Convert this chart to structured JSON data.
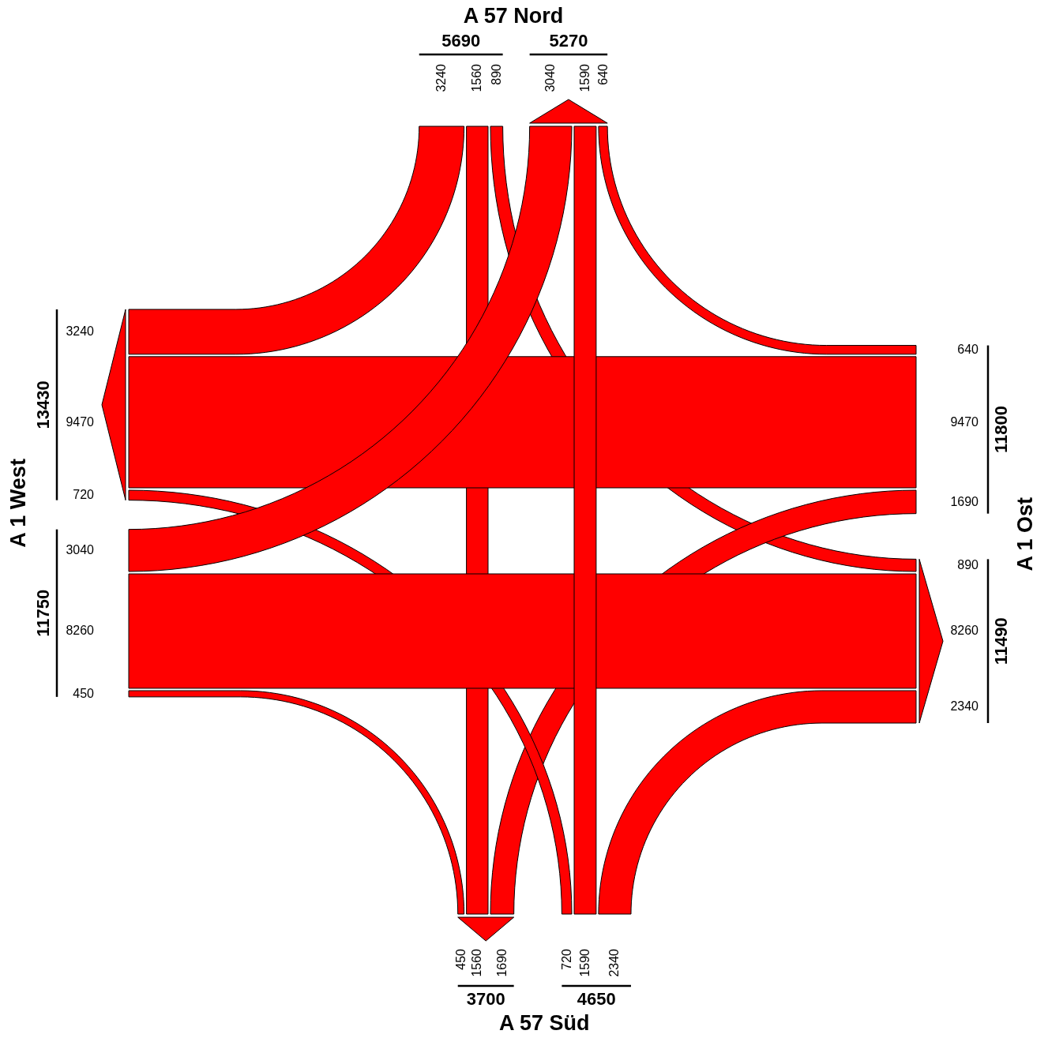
{
  "chart_data": {
    "type": "other",
    "categories": [
      "A 57 Nord",
      "A 1 Ost",
      "A 57 Süd",
      "A 1 West"
    ],
    "series": [
      {
        "color": "#ff0000",
        "values": [
          null,
          890,
          1560,
          3240
        ]
      },
      {
        "color": "#ff0000",
        "values": [
          640,
          null,
          1690,
          9470
        ]
      },
      {
        "color": "#ff0000",
        "values": [
          1590,
          2340,
          null,
          720
        ]
      },
      {
        "color": "#ff0000",
        "values": [
          3040,
          8260,
          450,
          null
        ]
      },
      {
        "color": "#ff0000",
        "values": [
          null,
          640,
          1590,
          3040
        ]
      },
      {
        "color": "#ff0000",
        "values": [
          890,
          null,
          2340,
          8260
        ]
      },
      {
        "color": "#ff0000",
        "values": [
          1560,
          1690,
          null,
          450
        ]
      },
      {
        "color": "#ff0000",
        "values": [
          3240,
          9470,
          720,
          null
        ]
      }
    ],
    "totals": [
      "5690",
      "5270",
      "11800",
      "11490",
      "4650",
      "3700",
      "11750",
      "13430"
    ],
    "data_labels": true
  }
}
